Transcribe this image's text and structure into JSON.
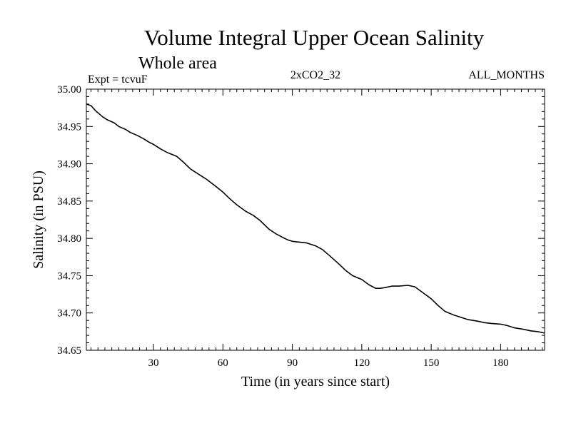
{
  "chart_data": {
    "type": "line",
    "title": "Volume Integral Upper Ocean Salinity",
    "subtitle": "Whole area",
    "annotations": {
      "left": "Expt = tcvuF",
      "center": "2xCO2_32",
      "right": "ALL_MONTHS"
    },
    "xlabel": "Time (in years since start)",
    "ylabel": "Salinity (in PSU)",
    "xlim": [
      1,
      199
    ],
    "ylim": [
      34.65,
      35.0
    ],
    "x_ticks": [
      30,
      60,
      90,
      120,
      150,
      180
    ],
    "x_tick_labels": [
      "30",
      "60",
      "90",
      "120",
      "150",
      "180"
    ],
    "y_ticks": [
      34.65,
      34.7,
      34.75,
      34.8,
      34.85,
      34.9,
      34.95,
      35.0
    ],
    "y_tick_labels": [
      "34.65",
      "34.70",
      "34.75",
      "34.80",
      "34.85",
      "34.90",
      "34.95",
      "35.00"
    ],
    "grid": false,
    "line_color": "#000000",
    "series": [
      {
        "x": [
          1,
          3,
          5,
          8,
          10,
          13,
          15,
          18,
          20,
          23,
          26,
          28,
          30,
          33,
          36,
          40,
          43,
          46,
          50,
          53,
          56,
          60,
          63,
          66,
          70,
          73,
          76,
          80,
          83,
          86,
          88,
          90,
          93,
          96,
          100,
          103,
          106,
          110,
          113,
          116,
          120,
          123,
          126,
          128,
          130,
          133,
          136,
          140,
          143,
          146,
          150,
          153,
          156,
          160,
          163,
          166,
          170,
          173,
          176,
          180,
          183,
          186,
          190,
          193,
          196,
          199
        ],
        "y": [
          34.98,
          34.978,
          34.971,
          34.963,
          34.959,
          34.955,
          34.95,
          34.946,
          34.942,
          34.938,
          34.933,
          34.929,
          34.926,
          34.92,
          34.915,
          34.91,
          34.902,
          34.893,
          34.885,
          34.879,
          34.872,
          34.862,
          34.853,
          34.845,
          34.836,
          34.831,
          34.824,
          34.812,
          34.806,
          34.801,
          34.798,
          34.796,
          34.795,
          34.794,
          34.79,
          34.785,
          34.777,
          34.766,
          34.757,
          34.75,
          34.745,
          34.738,
          34.733,
          34.733,
          34.734,
          34.736,
          34.736,
          34.737,
          34.735,
          34.728,
          34.719,
          34.71,
          34.702,
          34.697,
          34.694,
          34.691,
          34.689,
          34.687,
          34.686,
          34.685,
          34.683,
          34.68,
          34.678,
          34.676,
          34.675,
          34.673
        ]
      }
    ]
  }
}
